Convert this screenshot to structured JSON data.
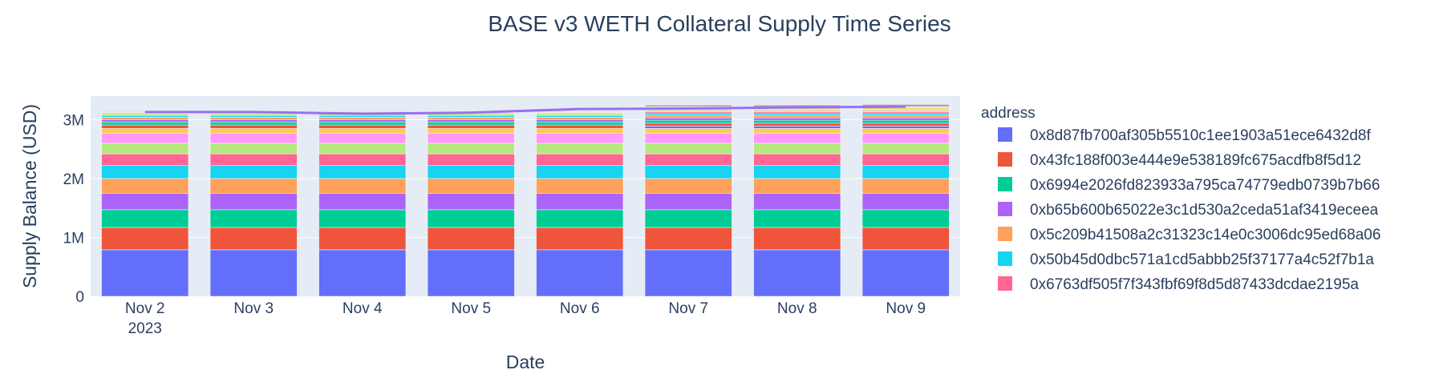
{
  "chart_data": {
    "type": "bar",
    "title": "BASE v3 WETH Collateral Supply Time Series",
    "xlabel": "Date",
    "ylabel": "Supply Balance (USD)",
    "ylim": [
      0,
      3400000
    ],
    "yticks": [
      0,
      1000000,
      2000000,
      3000000
    ],
    "yticklabels": [
      "0",
      "1M",
      "2M",
      "3M"
    ],
    "categories": [
      "Nov 2",
      "Nov 3",
      "Nov 4",
      "Nov 5",
      "Nov 6",
      "Nov 7",
      "Nov 8",
      "Nov 9"
    ],
    "first_tick_year": "2023",
    "grid": true,
    "barmode": "stack",
    "legend_title": "address",
    "legend_position": "right",
    "series": [
      {
        "name": "0x8d87fb700af305b5510c1ee1903a51ece6432d8f",
        "color": "#636efa",
        "values": [
          790000,
          790000,
          790000,
          790000,
          790000,
          790000,
          790000,
          790000
        ]
      },
      {
        "name": "0x43fc188f003e444e9e538189fc675acdfb8f5d12",
        "color": "#EF553B",
        "values": [
          380000,
          380000,
          380000,
          380000,
          380000,
          380000,
          380000,
          380000
        ]
      },
      {
        "name": "0x6994e2026fd823933a795ca74779edb0739b7b66",
        "color": "#00cc96",
        "values": [
          300000,
          300000,
          300000,
          300000,
          300000,
          300000,
          300000,
          300000
        ]
      },
      {
        "name": "0xb65b600b65022e3c1d530a2ceda51af3419eceea",
        "color": "#ab63fa",
        "values": [
          280000,
          280000,
          280000,
          280000,
          280000,
          280000,
          280000,
          280000
        ]
      },
      {
        "name": "0x5c209b41508a2c31323c14e0c3006dc95ed68a06",
        "color": "#FFA15A",
        "values": [
          250000,
          250000,
          250000,
          250000,
          250000,
          250000,
          250000,
          250000
        ]
      },
      {
        "name": "0x50b45d0dbc571a1cd5abbb25f37177a4c52f7b1a",
        "color": "#19d3f3",
        "values": [
          220000,
          220000,
          220000,
          220000,
          220000,
          220000,
          220000,
          220000
        ]
      },
      {
        "name": "0x6763df505f7f343fbf69f8d5d87433dcdae2195a",
        "color": "#FF6692",
        "values": [
          200000,
          200000,
          200000,
          200000,
          200000,
          200000,
          200000,
          200000
        ]
      },
      {
        "color": "#B6E880",
        "values": [
          180000,
          180000,
          180000,
          180000,
          180000,
          180000,
          180000,
          180000
        ]
      },
      {
        "color": "#FF97FF",
        "values": [
          170000,
          170000,
          170000,
          170000,
          170000,
          170000,
          170000,
          170000
        ]
      },
      {
        "color": "#FECB52",
        "values": [
          80000,
          80000,
          80000,
          80000,
          80000,
          80000,
          80000,
          80000
        ]
      },
      {
        "color": "#636efa",
        "values": [
          0,
          0,
          0,
          0,
          0,
          40000,
          40000,
          40000
        ]
      },
      {
        "color": "#EF553B",
        "values": [
          60000,
          60000,
          60000,
          60000,
          60000,
          50000,
          50000,
          50000
        ]
      },
      {
        "color": "#00cc96",
        "values": [
          50000,
          50000,
          50000,
          50000,
          50000,
          50000,
          50000,
          50000
        ]
      },
      {
        "color": "#ab63fa",
        "values": [
          40000,
          40000,
          40000,
          40000,
          40000,
          40000,
          40000,
          40000
        ]
      },
      {
        "color": "#FFA15A",
        "values": [
          40000,
          40000,
          40000,
          40000,
          40000,
          40000,
          40000,
          40000
        ]
      },
      {
        "color": "#19d3f3",
        "values": [
          30000,
          30000,
          30000,
          30000,
          30000,
          30000,
          30000,
          30000
        ]
      },
      {
        "color": "#FF6692",
        "values": [
          0,
          0,
          0,
          0,
          0,
          30000,
          30000,
          30000
        ]
      },
      {
        "color": "#B6E880",
        "values": [
          30000,
          30000,
          30000,
          30000,
          30000,
          30000,
          30000,
          30000
        ]
      },
      {
        "color": "#FF97FF",
        "values": [
          0,
          0,
          0,
          0,
          0,
          20000,
          20000,
          20000
        ]
      },
      {
        "color": "#FECB52",
        "values": [
          20000,
          20000,
          20000,
          20000,
          20000,
          20000,
          20000,
          20000
        ]
      },
      {
        "color": "#d3d3d3",
        "values": [
          20000,
          20000,
          20000,
          20000,
          20000,
          20000,
          20000,
          20000
        ]
      },
      {
        "color": "#a9a9a9",
        "values": [
          10000,
          10000,
          10000,
          10000,
          10000,
          30000,
          30000,
          40000
        ]
      }
    ],
    "total_line": {
      "color": "#9b6ef3",
      "values": [
        3130000,
        3130000,
        3100000,
        3120000,
        3180000,
        3190000,
        3210000,
        3220000
      ]
    }
  }
}
